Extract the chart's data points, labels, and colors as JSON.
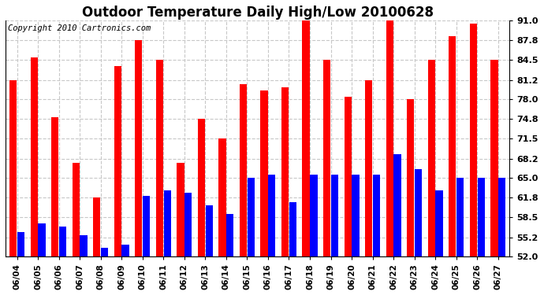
{
  "title": "Outdoor Temperature Daily High/Low 20100628",
  "copyright": "Copyright 2010 Cartronics.com",
  "dates": [
    "06/04",
    "06/05",
    "06/06",
    "06/07",
    "06/08",
    "06/09",
    "06/10",
    "06/11",
    "06/12",
    "06/13",
    "06/14",
    "06/15",
    "06/16",
    "06/17",
    "06/18",
    "06/19",
    "06/20",
    "06/21",
    "06/22",
    "06/23",
    "06/24",
    "06/25",
    "06/26",
    "06/27"
  ],
  "highs": [
    81.2,
    85.0,
    75.0,
    67.5,
    61.8,
    83.5,
    87.8,
    84.5,
    67.5,
    74.8,
    71.5,
    80.5,
    79.5,
    80.0,
    91.5,
    84.5,
    78.5,
    81.2,
    91.0,
    78.0,
    84.5,
    88.5,
    90.5,
    84.5
  ],
  "lows": [
    56.0,
    57.5,
    57.0,
    55.5,
    53.5,
    54.0,
    62.0,
    63.0,
    62.5,
    60.5,
    59.0,
    65.0,
    65.5,
    61.0,
    65.5,
    65.5,
    65.5,
    65.5,
    69.0,
    66.5,
    63.0,
    65.0,
    65.0,
    65.0
  ],
  "high_color": "#ff0000",
  "low_color": "#0000ff",
  "bg_color": "#ffffff",
  "grid_color": "#c8c8c8",
  "ymin": 52.0,
  "ymax": 91.0,
  "yticks": [
    52.0,
    55.2,
    58.5,
    61.8,
    65.0,
    68.2,
    71.5,
    74.8,
    78.0,
    81.2,
    84.5,
    87.8,
    91.0
  ],
  "title_fontsize": 12,
  "copyright_fontsize": 7.5,
  "bar_width": 0.35,
  "bar_gap": 0.02
}
